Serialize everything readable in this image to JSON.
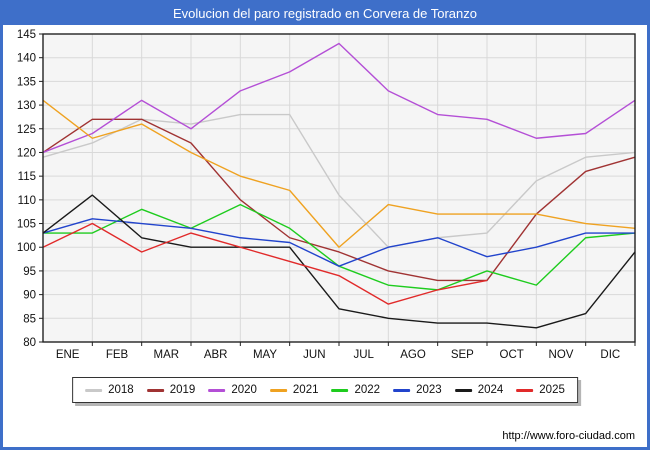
{
  "window": {
    "title": "Evolucion del paro registrado en Corvera de Toranzo",
    "accent_color": "#3e6fc9",
    "footer_url": "http://www.foro-ciudad.com"
  },
  "chart_data": {
    "type": "line",
    "title": "Evolucion del paro registrado en Corvera de Toranzo",
    "xlabel": "",
    "ylabel": "",
    "x_labels": [
      "ENE",
      "FEB",
      "MAR",
      "ABR",
      "MAY",
      "JUN",
      "JUL",
      "AGO",
      "SEP",
      "OCT",
      "NOV",
      "DIC"
    ],
    "ylim": [
      80,
      145
    ],
    "ytick_step": 5,
    "grid": true,
    "legend_position": "bottom",
    "plot_bg": "#f5f5f5",
    "grid_color": "#d9d9d9",
    "border_color": "#222222",
    "note": "Each series has 13 points: an unlabeled start value at the plot's left edge followed by the 12 monthly values; null means no data (2025 series ends in SEP).",
    "series": [
      {
        "name": "2018",
        "color": "#c9c9c9",
        "values": [
          119,
          122,
          127,
          126,
          128,
          128,
          111,
          100,
          102,
          103,
          114,
          119,
          120
        ]
      },
      {
        "name": "2019",
        "color": "#a03333",
        "values": [
          120,
          127,
          127,
          122,
          110,
          102,
          99,
          95,
          93,
          93,
          107,
          116,
          119
        ]
      },
      {
        "name": "2020",
        "color": "#b44fd6",
        "values": [
          120,
          124,
          131,
          125,
          133,
          137,
          143,
          133,
          128,
          127,
          123,
          124,
          131
        ]
      },
      {
        "name": "2021",
        "color": "#efa221",
        "values": [
          131,
          123,
          126,
          120,
          115,
          112,
          100,
          109,
          107,
          107,
          107,
          105,
          104
        ]
      },
      {
        "name": "2022",
        "color": "#1ecc1e",
        "values": [
          103,
          103,
          108,
          104,
          109,
          104,
          96,
          92,
          91,
          95,
          92,
          102,
          103
        ]
      },
      {
        "name": "2023",
        "color": "#2244cc",
        "values": [
          103,
          106,
          105,
          104,
          102,
          101,
          96,
          100,
          102,
          98,
          100,
          103,
          103
        ]
      },
      {
        "name": "2024",
        "color": "#1a1a1a",
        "values": [
          103,
          111,
          102,
          100,
          100,
          100,
          87,
          85,
          84,
          84,
          83,
          86,
          99
        ]
      },
      {
        "name": "2025",
        "color": "#e12a2a",
        "values": [
          100,
          105,
          99,
          103,
          100,
          97,
          94,
          88,
          91,
          93,
          null,
          null,
          null
        ]
      }
    ]
  },
  "legend": {
    "items": [
      {
        "label": "2018",
        "color": "#c9c9c9"
      },
      {
        "label": "2019",
        "color": "#a03333"
      },
      {
        "label": "2020",
        "color": "#b44fd6"
      },
      {
        "label": "2021",
        "color": "#efa221"
      },
      {
        "label": "2022",
        "color": "#1ecc1e"
      },
      {
        "label": "2023",
        "color": "#2244cc"
      },
      {
        "label": "2024",
        "color": "#1a1a1a"
      },
      {
        "label": "2025",
        "color": "#e12a2a"
      }
    ]
  }
}
